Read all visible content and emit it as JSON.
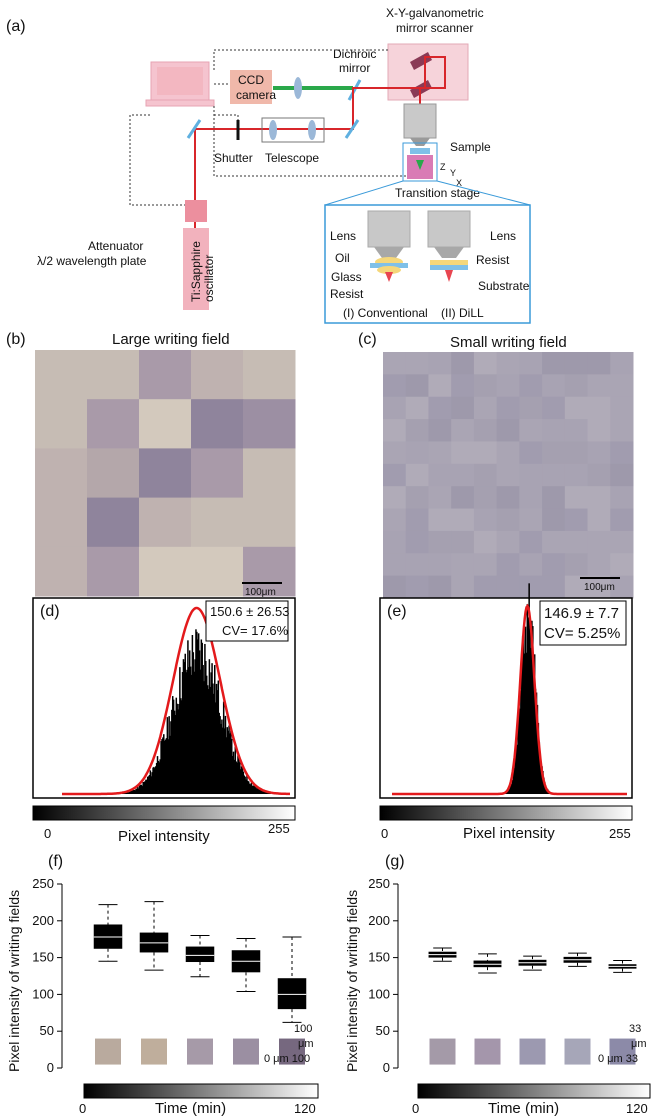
{
  "panel_a": {
    "label": "(a)",
    "texts": {
      "scanner": [
        "X-Y-galvanometric",
        "mirror scanner"
      ],
      "dichroic": [
        "Dichroic",
        "mirror"
      ],
      "ccd": [
        "CCD",
        "camera"
      ],
      "sample": "Sample",
      "shutter": "Shutter",
      "telescope": "Telescope",
      "transition_stage": "Transition stage",
      "attenuator": [
        "Attenuator",
        "λ/2 wavelength plate"
      ],
      "oscillator": [
        "Ti:Sapphire",
        "oscillator"
      ],
      "axis_z": "Z",
      "axis_y": "Y",
      "axis_x": "X",
      "inset_lens_left": "Lens",
      "inset_lens_right": "Lens",
      "inset_oil": "Oil",
      "inset_glass": "Glass",
      "inset_resist_left": "Resist",
      "inset_resist_right": "Resist",
      "inset_substrate": "Substrate",
      "inset_conventional": "(I) Conventional",
      "inset_dill": "(II) DiLL"
    },
    "colors": {
      "beam": "#d8262b",
      "inset_border": "#3a9ad9",
      "green": "#2aa84a",
      "lens": "#9bb8d8"
    }
  },
  "panel_b": {
    "label": "(b)",
    "title": "Large writing field",
    "scale": "100μm"
  },
  "panel_c": {
    "label": "(c)",
    "title": "Small writing field",
    "scale": "100μm"
  },
  "panel_d": {
    "label": "(d)",
    "stats": [
      "150.6 ± 26.53",
      "CV= 17.6%"
    ],
    "xlabel": "Pixel intensity",
    "xmin": "0",
    "xmax": "255"
  },
  "panel_e": {
    "label": "(e)",
    "stats": [
      "146.9 ± 7.7",
      "CV= 5.25%"
    ],
    "xlabel": "Pixel intensity",
    "xmin": "0",
    "xmax": "255"
  },
  "chart_data": [
    {
      "type": "bar",
      "panel": "(d)",
      "xlabel": "Pixel intensity",
      "xlim": [
        0,
        255
      ],
      "annotation": [
        "150.6 ± 26.53",
        "CV= 17.6%"
      ],
      "fit": {
        "mean": 150.6,
        "sd": 26.53
      }
    },
    {
      "type": "bar",
      "panel": "(e)",
      "xlabel": "Pixel intensity",
      "xlim": [
        0,
        255
      ],
      "annotation": [
        "146.9 ± 7.7",
        "CV= 5.25%"
      ],
      "fit": {
        "mean": 146.9,
        "sd": 7.7
      }
    },
    {
      "type": "box",
      "panel": "(f)",
      "ylabel": "Pixel intensity of writing fields",
      "xlabel": "Time (min)",
      "xticks": [
        "0",
        "120"
      ],
      "yticks": [
        0,
        50,
        100,
        150,
        200,
        250
      ],
      "ylim": [
        0,
        250
      ],
      "boxes": [
        {
          "min": 145,
          "q1": 162,
          "median": 178,
          "q3": 195,
          "max": 222
        },
        {
          "min": 133,
          "q1": 157,
          "median": 170,
          "q3": 184,
          "max": 226
        },
        {
          "min": 124,
          "q1": 144,
          "median": 153,
          "q3": 165,
          "max": 180
        },
        {
          "min": 104,
          "q1": 130,
          "median": 145,
          "q3": 160,
          "max": 176
        },
        {
          "min": 62,
          "q1": 80,
          "median": 100,
          "q3": 122,
          "max": 178
        }
      ],
      "scale_labels": [
        "100",
        "μm",
        "0  μm 100"
      ]
    },
    {
      "type": "box",
      "panel": "(g)",
      "ylabel": "Pixel intensity of writing fields",
      "xlabel": "Time (min)",
      "xticks": [
        "0",
        "120"
      ],
      "yticks": [
        0,
        50,
        100,
        150,
        200,
        250
      ],
      "ylim": [
        0,
        250
      ],
      "boxes": [
        {
          "min": 145,
          "q1": 150,
          "median": 154,
          "q3": 158,
          "max": 163
        },
        {
          "min": 129,
          "q1": 137,
          "median": 141,
          "q3": 146,
          "max": 155
        },
        {
          "min": 133,
          "q1": 139,
          "median": 143,
          "q3": 147,
          "max": 152
        },
        {
          "min": 138,
          "q1": 143,
          "median": 147,
          "q3": 151,
          "max": 156
        },
        {
          "min": 130,
          "q1": 135,
          "median": 138,
          "q3": 141,
          "max": 146
        }
      ],
      "scale_labels": [
        "33",
        "μm",
        "0  μm 33"
      ]
    }
  ],
  "panel_f": {
    "label": "(f)"
  },
  "panel_g": {
    "label": "(g)"
  }
}
